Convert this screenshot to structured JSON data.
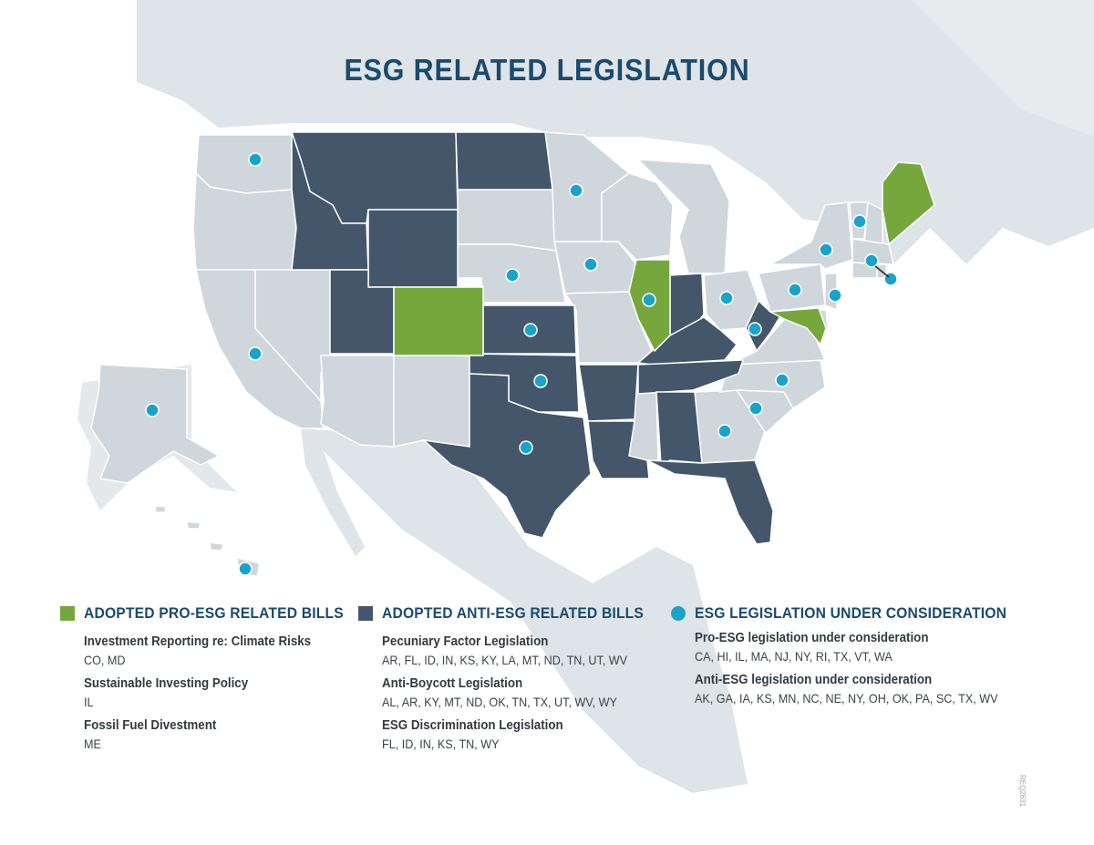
{
  "title": "ESG RELATED LEGISLATION",
  "colors": {
    "pro_adopted": "#76a73d",
    "anti_adopted": "#43566a",
    "under_consideration": "#1aa3c9",
    "neutral_state": "#cfd6dc",
    "background_land": "#dfe4e8",
    "title": "#1a4a6e"
  },
  "map": {
    "pro_adopted_states": [
      "CO",
      "MD",
      "IL",
      "ME"
    ],
    "anti_adopted_states": [
      "AL",
      "AR",
      "FL",
      "ID",
      "IN",
      "KS",
      "KY",
      "LA",
      "MT",
      "ND",
      "OK",
      "TN",
      "TX",
      "UT",
      "WV",
      "WY"
    ],
    "under_consideration_states": [
      "AK",
      "CA",
      "GA",
      "HI",
      "IA",
      "IL",
      "KS",
      "MA",
      "MN",
      "NC",
      "NE",
      "NJ",
      "NY",
      "OH",
      "OK",
      "PA",
      "RI",
      "SC",
      "TX",
      "VT",
      "WA",
      "WV"
    ]
  },
  "legend": {
    "pro": {
      "heading": "ADOPTED PRO-ESG RELATED BILLS",
      "items": [
        {
          "title": "Investment Reporting re: Climate Risks",
          "states": "CO, MD"
        },
        {
          "title": "Sustainable Investing Policy",
          "states": "IL"
        },
        {
          "title": "Fossil Fuel Divestment",
          "states": "ME"
        }
      ]
    },
    "anti": {
      "heading": "ADOPTED ANTI-ESG RELATED BILLS",
      "items": [
        {
          "title": "Pecuniary Factor Legislation",
          "states": "AR, FL, ID, IN, KS, KY, LA, MT, ND, TN, UT, WV"
        },
        {
          "title": "Anti-Boycott Legislation",
          "states": "AL, AR, KY, MT, ND, OK, TN, TX, UT, WV, WY"
        },
        {
          "title": "ESG Discrimination Legislation",
          "states": "FL, ID, IN, KS, TN, WY"
        }
      ]
    },
    "consideration": {
      "heading": "ESG LEGISLATION UNDER CONSIDERATION",
      "items": [
        {
          "title": "Pro-ESG legislation under consideration",
          "states": "CA, HI, IL, MA, NJ, NY, RI, TX, VT, WA"
        },
        {
          "title": "Anti-ESG legislation under consideration",
          "states": "AK, GA, IA, KS, MN, NC, NE, NY, OH, OK, PA, SC, TX, WV"
        }
      ]
    }
  },
  "reference_code": "REQ2631"
}
